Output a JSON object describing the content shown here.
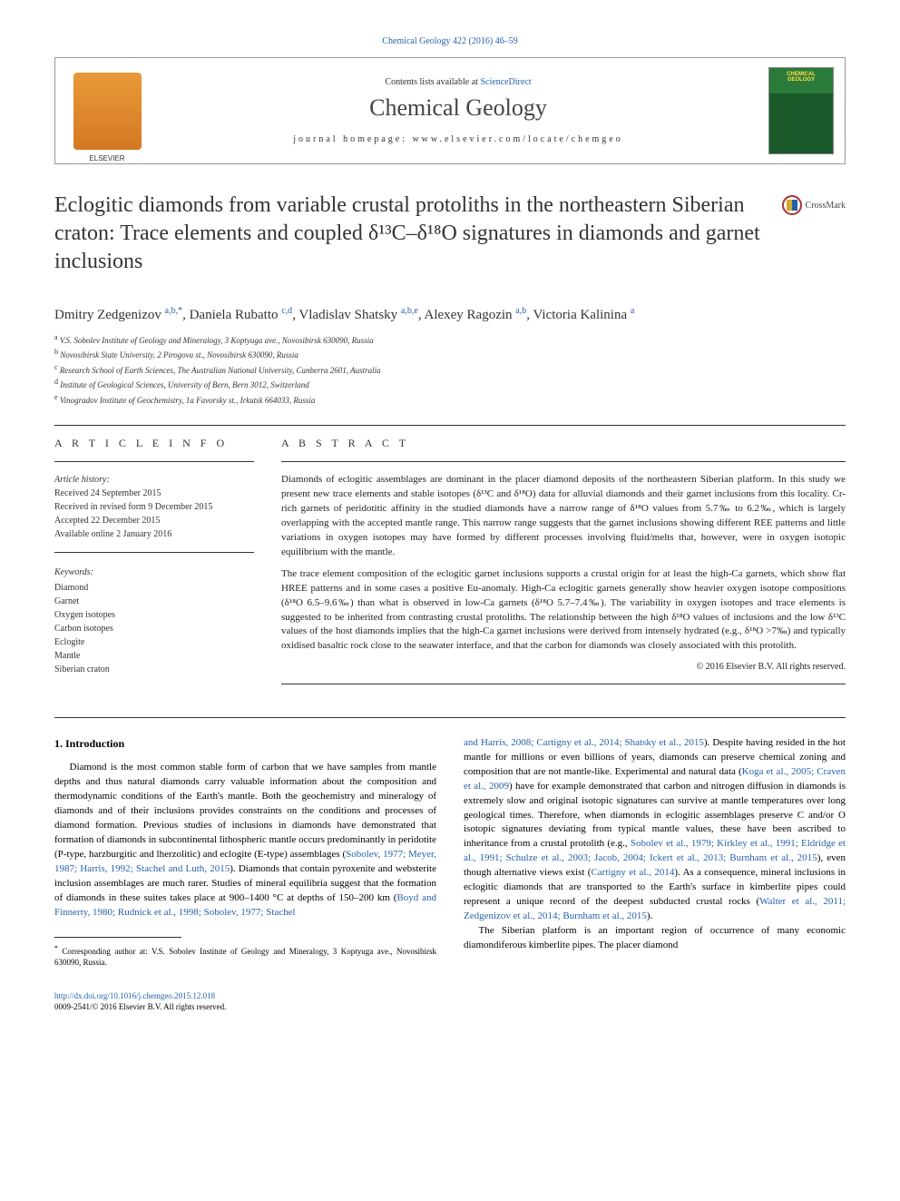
{
  "top_link": "Chemical Geology 422 (2016) 46–59",
  "header": {
    "contents_prefix": "Contents lists available at ",
    "contents_link": "ScienceDirect",
    "journal_title": "Chemical Geology",
    "homepage": "journal homepage: www.elsevier.com/locate/chemgeo",
    "cover_label_top": "CHEMICAL",
    "cover_label_bottom": "GEOLOGY"
  },
  "article": {
    "title": "Eclogitic diamonds from variable crustal protoliths in the northeastern Siberian craton: Trace elements and coupled δ¹³C–δ¹⁸O signatures in diamonds and garnet inclusions",
    "crossmark": "CrossMark"
  },
  "authors": [
    {
      "name": "Dmitry Zedgenizov",
      "aff": "a,b,",
      "corr": "*"
    },
    {
      "name": "Daniela Rubatto",
      "aff": "c,d"
    },
    {
      "name": "Vladislav Shatsky",
      "aff": "a,b,e"
    },
    {
      "name": "Alexey Ragozin",
      "aff": "a,b"
    },
    {
      "name": "Victoria Kalinina",
      "aff": "a"
    }
  ],
  "affiliations": [
    {
      "key": "a",
      "text": "V.S. Sobolev Institute of Geology and Mineralogy, 3 Koptyuga ave., Novosibirsk 630090, Russia"
    },
    {
      "key": "b",
      "text": "Novosibirsk State University, 2 Pirogova st., Novosibirsk 630090, Russia"
    },
    {
      "key": "c",
      "text": "Research School of Earth Sciences, The Australian National University, Canberra 2601, Australia"
    },
    {
      "key": "d",
      "text": "Institute of Geological Sciences, University of Bern, Bern 3012, Switzerland"
    },
    {
      "key": "e",
      "text": "Vinogradov Institute of Geochemistry, 1a Favorsky st., Irkutsk 664033, Russia"
    }
  ],
  "article_info": {
    "label": "A R T I C L E   I N F O",
    "history_hdr": "Article history:",
    "history": [
      "Received 24 September 2015",
      "Received in revised form 9 December 2015",
      "Accepted 22 December 2015",
      "Available online 2 January 2016"
    ],
    "keywords_hdr": "Keywords:",
    "keywords": [
      "Diamond",
      "Garnet",
      "Oxygen isotopes",
      "Carbon isotopes",
      "Eclogite",
      "Mantle",
      "Siberian craton"
    ]
  },
  "abstract": {
    "label": "A B S T R A C T",
    "p1": "Diamonds of eclogitic assemblages are dominant in the placer diamond deposits of the northeastern Siberian platform. In this study we present new trace elements and stable isotopes (δ¹³C and δ¹⁸O) data for alluvial diamonds and their garnet inclusions from this locality. Cr-rich garnets of peridotitic affinity in the studied diamonds have a narrow range of δ¹⁸O values from 5.7‰ to 6.2‰, which is largely overlapping with the accepted mantle range. This narrow range suggests that the garnet inclusions showing different REE patterns and little variations in oxygen isotopes may have formed by different processes involving fluid/melts that, however, were in oxygen isotopic equilibrium with the mantle.",
    "p2": "The trace element composition of the eclogitic garnet inclusions supports a crustal origin for at least the high-Ca garnets, which show flat HREE patterns and in some cases a positive Eu-anomaly. High-Ca eclogitic garnets generally show heavier oxygen isotope compositions (δ¹⁸O 6.5–9.6‰) than what is observed in low-Ca garnets (δ¹⁸O 5.7–7.4‰). The variability in oxygen isotopes and trace elements is suggested to be inherited from contrasting crustal protoliths. The relationship between the high δ¹⁸O values of inclusions and the low δ¹³C values of the host diamonds implies that the high-Ca garnet inclusions were derived from intensely hydrated (e.g., δ¹⁸O >7‰) and typically oxidised basaltic rock close to the seawater interface, and that the carbon for diamonds was closely associated with this protolith.",
    "copyright": "© 2016 Elsevier B.V. All rights reserved."
  },
  "body": {
    "section_title": "1. Introduction",
    "col1_p1_a": "Diamond is the most common stable form of carbon that we have samples from mantle depths and thus natural diamonds carry valuable information about the composition and thermodynamic conditions of the Earth's mantle. Both the geochemistry and mineralogy of diamonds and of their inclusions provides constraints on the conditions and processes of diamond formation. Previous studies of inclusions in diamonds have demonstrated that formation of diamonds in subcontinental lithospheric mantle occurs predominantly in peridotite (P-type, harzburgitic and lherzolitic) and eclogite (E-type) assemblages (",
    "col1_link1": "Sobolev, 1977; Meyer, 1987; Harris, 1992; Stachel and Luth, 2015",
    "col1_p1_b": "). Diamonds that contain pyroxenite and websterite inclusion assemblages are much rarer. Studies of mineral equilibria suggest that the formation of diamonds in these suites takes place at 900–1400 °C at depths of 150–200 km (",
    "col1_link2": "Boyd and Finnerty, 1980; Rudnick et al., 1998; Sobolev, 1977; Stachel",
    "col2_link1": "and Harris, 2008; Cartigny et al., 2014; Shatsky et al., 2015",
    "col2_p1_a": "). Despite having resided in the hot mantle for millions or even billions of years, diamonds can preserve chemical zoning and composition that are not mantle-like. Experimental and natural data (",
    "col2_link2": "Koga et al., 2005; Craven et al., 2009",
    "col2_p1_b": ") have for example demonstrated that carbon and nitrogen diffusion in diamonds is extremely slow and original isotopic signatures can survive at mantle temperatures over long geological times. Therefore, when diamonds in eclogitic assemblages preserve C and/or O isotopic signatures deviating from typical mantle values, these have been ascribed to inheritance from a crustal protolith (e.g., ",
    "col2_link3": "Sobolev et al., 1979; Kirkley et al., 1991; Eldridge et al., 1991; Schulze et al., 2003; Jacob, 2004; Ickert et al., 2013; Burnham et al., 2015",
    "col2_p1_c": "), even though alternative views exist (",
    "col2_link4": "Cartigny et al., 2014",
    "col2_p1_d": "). As a consequence, mineral inclusions in eclogitic diamonds that are transported to the Earth's surface in kimberlite pipes could represent a unique record of the deepest subducted crustal rocks (",
    "col2_link5": "Walter et al., 2011; Zedgenizov et al., 2014; Burnham et al., 2015",
    "col2_p1_e": ").",
    "col2_p2": "The Siberian platform is an important region of occurrence of many economic diamondiferous kimberlite pipes. The placer diamond"
  },
  "footnote": {
    "marker": "*",
    "text": "Corresponding author at: V.S. Sobolev Institute of Geology and Mineralogy, 3 Koptyuga ave., Novosibirsk 630090, Russia."
  },
  "footer": {
    "doi": "http://dx.doi.org/10.1016/j.chemgeo.2015.12.018",
    "issn": "0009-2541/© 2016 Elsevier B.V. All rights reserved."
  },
  "colors": {
    "link": "#2861aa",
    "text": "#222222",
    "elsevier_orange": "#e89a3a",
    "cover_green": "#2a7a3a"
  }
}
